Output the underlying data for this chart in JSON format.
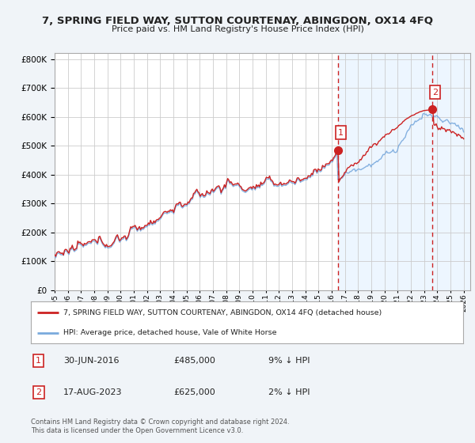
{
  "title": "7, SPRING FIELD WAY, SUTTON COURTENAY, ABINGDON, OX14 4FQ",
  "subtitle": "Price paid vs. HM Land Registry's House Price Index (HPI)",
  "ytick_values": [
    0,
    100000,
    200000,
    300000,
    400000,
    500000,
    600000,
    700000,
    800000
  ],
  "ylim": [
    0,
    820000
  ],
  "xlim_start": 1995.0,
  "xlim_end": 2026.5,
  "hpi_color": "#7aaadd",
  "price_color": "#cc2222",
  "marker1_date": 2016.5,
  "marker2_date": 2023.63,
  "marker1_price": 485000,
  "marker2_price": 625000,
  "legend_label1": "7, SPRING FIELD WAY, SUTTON COURTENAY, ABINGDON, OX14 4FQ (detached house)",
  "legend_label2": "HPI: Average price, detached house, Vale of White Horse",
  "table_row1_num": "1",
  "table_row1_date": "30-JUN-2016",
  "table_row1_price": "£485,000",
  "table_row1_hpi": "9% ↓ HPI",
  "table_row2_num": "2",
  "table_row2_date": "17-AUG-2023",
  "table_row2_price": "£625,000",
  "table_row2_hpi": "2% ↓ HPI",
  "footer": "Contains HM Land Registry data © Crown copyright and database right 2024.\nThis data is licensed under the Open Government Licence v3.0.",
  "background_color": "#f0f4f8",
  "plot_bg_color": "#ffffff",
  "grid_color": "#cccccc",
  "highlight_bg": "#ddeeff"
}
